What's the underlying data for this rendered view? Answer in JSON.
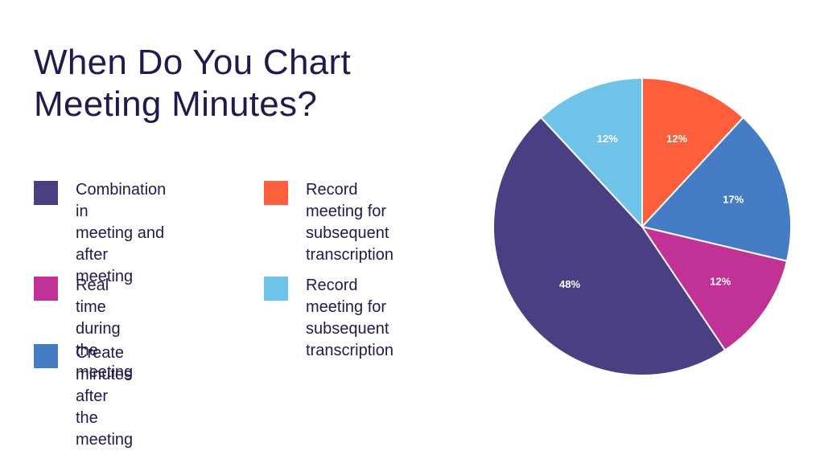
{
  "chart_data": {
    "type": "pie",
    "title": "When Do You Chart Meeting Minutes?",
    "slices": [
      {
        "label": "Record meeting for subsequent transcription",
        "value": 12,
        "value_label": "12%",
        "color": "#fd5e3b"
      },
      {
        "label": "Create minutes after the meeting",
        "value": 17,
        "value_label": "17%",
        "color": "#457cc4"
      },
      {
        "label": "Real time during the meeting",
        "value": 12,
        "value_label": "12%",
        "color": "#c13296"
      },
      {
        "label": "Combination in meeting and after meeting",
        "value": 48,
        "value_label": "48%",
        "color": "#4b3f84"
      },
      {
        "label": "Record meeting for subsequent transcription",
        "value": 12,
        "value_label": "12%",
        "color": "#6fc3e8"
      }
    ]
  },
  "legend": [
    {
      "lines": [
        "Combination in",
        "meeting and after",
        "meeting"
      ],
      "color": "#4b3f84"
    },
    {
      "lines": [
        "Real time during",
        "the meeting"
      ],
      "color": "#c13296"
    },
    {
      "lines": [
        "Create minutes after",
        "the meeting"
      ],
      "color": "#457cc4"
    },
    {
      "lines": [
        "Record meeting for",
        "subsequent",
        "transcription"
      ],
      "color": "#fd5e3b"
    },
    {
      "lines": [
        "Record meeting for",
        "subsequent",
        "transcription"
      ],
      "color": "#6fc3e8"
    }
  ]
}
